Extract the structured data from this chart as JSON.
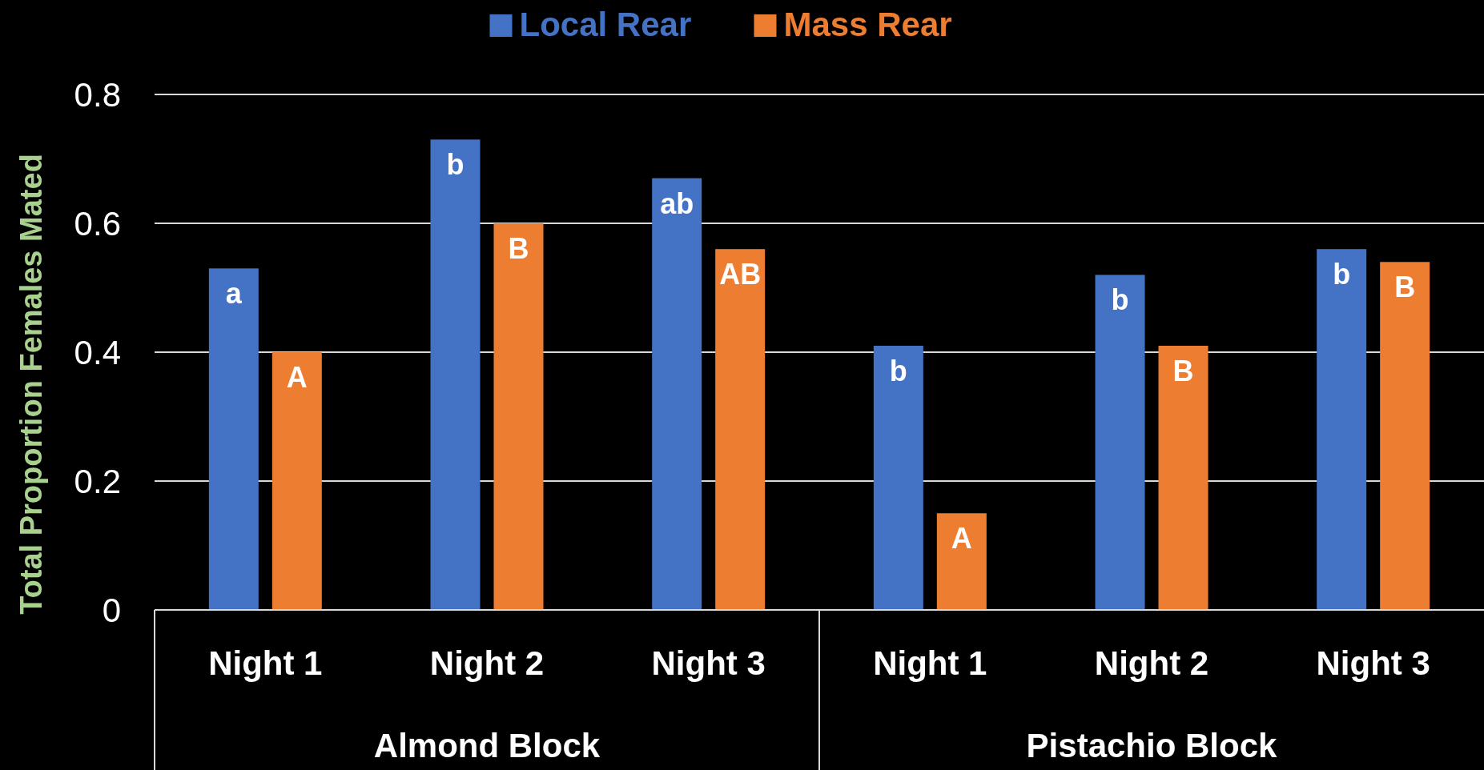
{
  "chart_data": {
    "type": "bar",
    "ylabel": "Total Proportion Females Mated",
    "categories": [
      "Night 1",
      "Night 2",
      "Night 3",
      "Night 1",
      "Night 2",
      "Night 3"
    ],
    "series": [
      {
        "name": "Local Rear",
        "color": "#4472c4",
        "values": [
          0.53,
          0.73,
          0.67,
          0.41,
          0.52,
          0.56
        ],
        "value_labels": [
          "a",
          "b",
          "ab",
          "b",
          "b",
          "b"
        ]
      },
      {
        "name": "Mass Rear",
        "color": "#ed7d31",
        "values": [
          0.4,
          0.6,
          0.56,
          0.15,
          0.41,
          0.54
        ],
        "value_labels": [
          "A",
          "B",
          "AB",
          "A",
          "B",
          "B"
        ]
      }
    ],
    "ylim": [
      0,
      0.8
    ],
    "yticks": [
      0,
      0.2,
      0.4,
      0.6,
      0.8
    ],
    "grid": "y",
    "legend": "top",
    "annotations": [
      "Almond Block",
      "Pistachio Block"
    ]
  }
}
